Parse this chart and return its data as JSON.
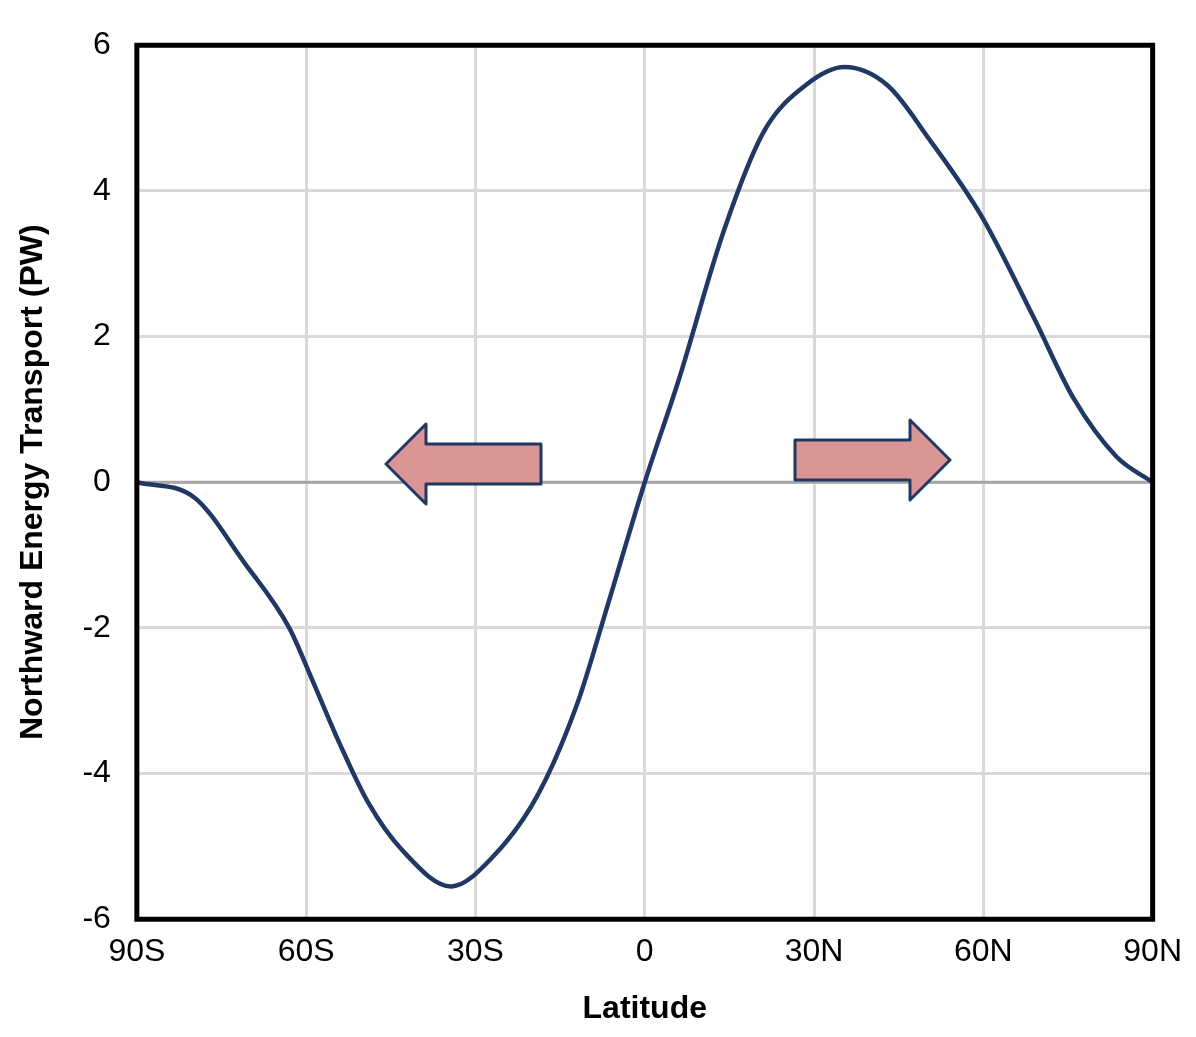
{
  "chart_data": {
    "type": "line",
    "xlabel": "Latitude",
    "ylabel": "Northward Energy Transport (PW)",
    "x": [
      -90,
      -80,
      -71,
      -63,
      -59,
      -54,
      -49,
      -43,
      -34.3,
      -27,
      -19,
      -12,
      -7,
      0,
      6,
      14,
      21,
      28.5,
      35.4,
      43,
      50.5,
      59.7,
      69,
      76,
      83.6,
      90
    ],
    "series": [
      {
        "color": "#1f3864",
        "values": [
          0,
          -0.2,
          -1.1,
          -2,
          -2.7,
          -3.6,
          -4.4,
          -5.05,
          -5.55,
          -5.15,
          -4.3,
          -3.05,
          -1.8,
          0,
          1.4,
          3.45,
          4.8,
          5.45,
          5.7,
          5.45,
          4.7,
          3.65,
          2.25,
          1.15,
          0.35,
          0
        ]
      }
    ],
    "xlim": [
      -90,
      90
    ],
    "xticks": [
      {
        "value": -90,
        "label": "90S"
      },
      {
        "value": -60,
        "label": "60S"
      },
      {
        "value": -30,
        "label": "30S"
      },
      0,
      {
        "value": 30,
        "label": "30N"
      },
      {
        "value": 60,
        "label": "60N"
      },
      {
        "value": 90,
        "label": "90N"
      }
    ],
    "ylim": [
      -6,
      6
    ],
    "yticks": [
      -6,
      -4,
      -2,
      0,
      2,
      4,
      6
    ],
    "ref_lines": [
      {
        "axis": "y",
        "value": 0,
        "color": "#a6a6a6"
      }
    ],
    "grid": true,
    "legend": false,
    "marker": "none",
    "line_style": "solid"
  }
}
